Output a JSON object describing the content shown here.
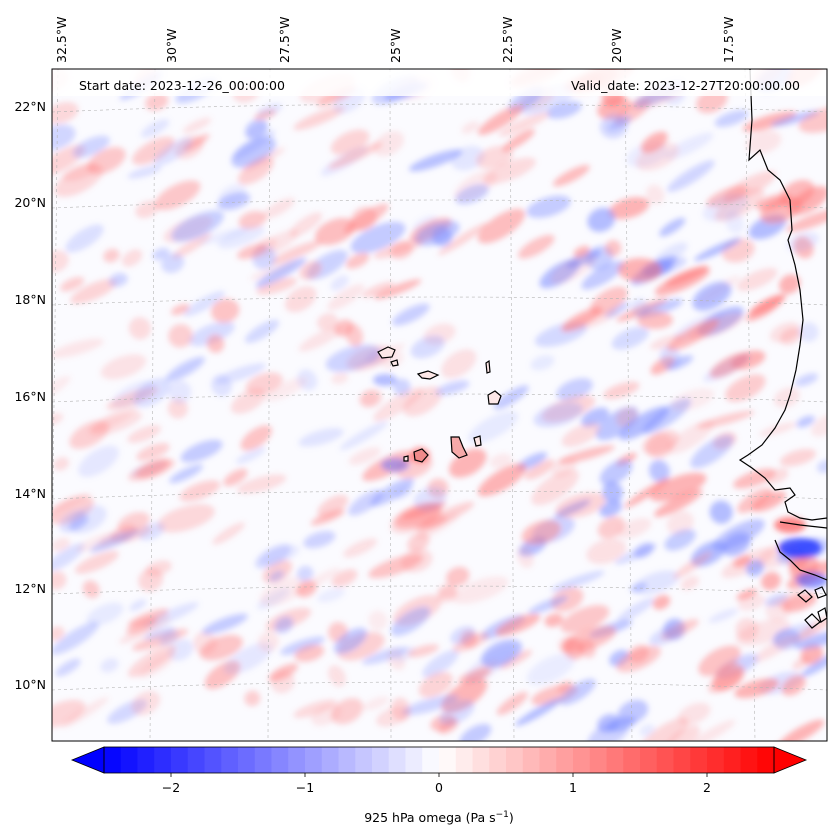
{
  "header": {
    "start_date": "Start date: 2023-12-26_00:00:00",
    "valid_date": "Valid_date: 2023-12-27T20:00:00.00"
  },
  "map": {
    "lon_labels": [
      "32.5°W",
      "30°W",
      "27.5°W",
      "25°W",
      "22.5°W",
      "20°W",
      "17.5°W"
    ],
    "lat_labels": [
      "22°N",
      "20°N",
      "18°N",
      "16°N",
      "14°N",
      "12°N",
      "10°N"
    ],
    "gridlines": true,
    "coastline_color": "#000000",
    "field": "925 hPa omega"
  },
  "colorbar": {
    "ticks": [
      "−2",
      "−1",
      "0",
      "1",
      "2"
    ],
    "label": "925 hPa omega (Pa s",
    "label_sup": "−1",
    "label_end": ")",
    "range": [
      -2.5,
      2.5
    ],
    "extend": "both",
    "colormap": "bwr",
    "low_color": "#0000ff",
    "mid_color": "#ffffff",
    "high_color": "#ff0000"
  }
}
